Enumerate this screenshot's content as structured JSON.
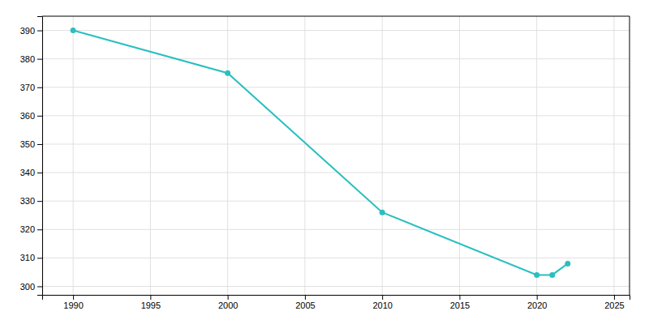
{
  "chart_data": {
    "type": "line",
    "x": [
      1990,
      2000,
      2010,
      2020,
      2021,
      2022
    ],
    "values": [
      390,
      375,
      326,
      304,
      304,
      308
    ],
    "color": "#2abfbf",
    "marker": "circle",
    "xlim": [
      1988,
      2026
    ],
    "ylim": [
      297,
      395
    ],
    "xticks": [
      1990,
      1995,
      2000,
      2005,
      2010,
      2015,
      2020,
      2025
    ],
    "yticks": [
      300,
      310,
      320,
      330,
      340,
      350,
      360,
      370,
      380,
      390
    ],
    "grid": true
  }
}
